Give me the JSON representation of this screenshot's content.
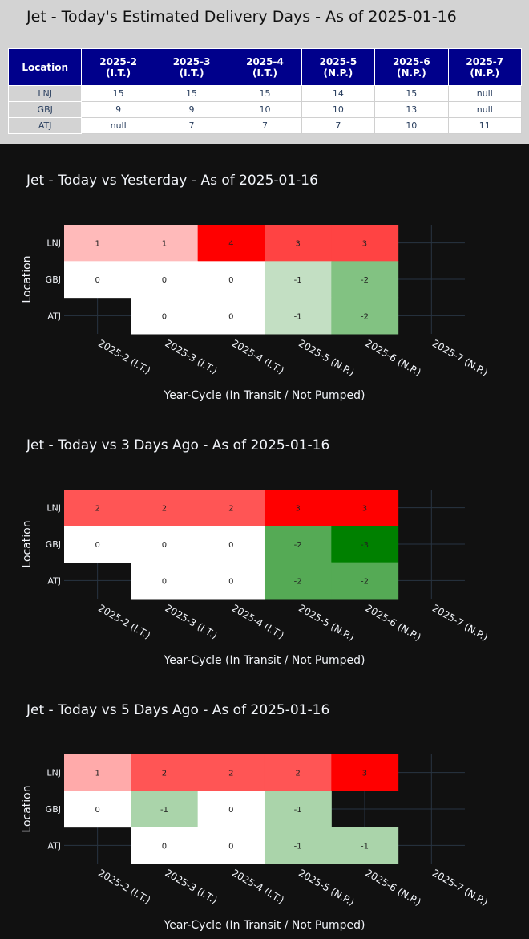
{
  "page_title": "Jet - Today's Estimated Delivery Days - As of 2025-01-16",
  "table": {
    "header_first": "Location",
    "columns": [
      {
        "l1": "2025-2",
        "l2": "(I.T.)"
      },
      {
        "l1": "2025-3",
        "l2": "(I.T.)"
      },
      {
        "l1": "2025-4",
        "l2": "(I.T.)"
      },
      {
        "l1": "2025-5",
        "l2": "(N.P.)"
      },
      {
        "l1": "2025-6",
        "l2": "(N.P.)"
      },
      {
        "l1": "2025-7",
        "l2": "(N.P.)"
      }
    ],
    "rows": [
      {
        "loc": "LNJ",
        "vals": [
          "15",
          "15",
          "15",
          "14",
          "15",
          "null"
        ]
      },
      {
        "loc": "GBJ",
        "vals": [
          "9",
          "9",
          "10",
          "10",
          "13",
          "null"
        ]
      },
      {
        "loc": "ATJ",
        "vals": [
          "null",
          "7",
          "7",
          "7",
          "10",
          "11"
        ]
      }
    ],
    "colors": {
      "header_bg": "#00008b",
      "header_text": "#ffffff",
      "cell_text": "#2a3f5f",
      "loc_bg": "#d3d3d3"
    }
  },
  "chart_data": [
    {
      "type": "heatmap",
      "title": "Jet - Today vs Yesterday - As of 2025-01-16",
      "xlabel": "Year-Cycle (In Transit / Not Pumped)",
      "ylabel": "Location",
      "x": [
        "2025-2 (I.T.)",
        "2025-3 (I.T.)",
        "2025-4 (I.T.)",
        "2025-5 (N.P.)",
        "2025-6 (N.P.)",
        "2025-7 (N.P.)"
      ],
      "y": [
        "LNJ",
        "GBJ",
        "ATJ"
      ],
      "z": [
        [
          1,
          1,
          4,
          3,
          3,
          null
        ],
        [
          0,
          0,
          0,
          -1,
          -2,
          null
        ],
        [
          null,
          0,
          0,
          -1,
          -2,
          null
        ]
      ],
      "colors": [
        [
          "#ffbaba",
          "#ffbaba",
          "#ff0000",
          "#ff4343",
          "#ff4343",
          null
        ],
        [
          "#ffffff",
          "#ffffff",
          "#ffffff",
          "#c3dfc3",
          "#82c282",
          null
        ],
        [
          null,
          "#ffffff",
          "#ffffff",
          "#c3dfc3",
          "#82c282",
          null
        ]
      ]
    },
    {
      "type": "heatmap",
      "title": "Jet - Today vs 3 Days Ago - As of 2025-01-16",
      "xlabel": "Year-Cycle (In Transit / Not Pumped)",
      "ylabel": "Location",
      "x": [
        "2025-2 (I.T.)",
        "2025-3 (I.T.)",
        "2025-4 (I.T.)",
        "2025-5 (N.P.)",
        "2025-6 (N.P.)",
        "2025-7 (N.P.)"
      ],
      "y": [
        "LNJ",
        "GBJ",
        "ATJ"
      ],
      "z": [
        [
          2,
          2,
          2,
          3,
          3,
          null
        ],
        [
          0,
          0,
          0,
          -2,
          -3,
          null
        ],
        [
          null,
          0,
          0,
          -2,
          -2,
          null
        ]
      ],
      "colors": [
        [
          "#ff5555",
          "#ff5555",
          "#ff5555",
          "#ff0000",
          "#ff0000",
          null
        ],
        [
          "#ffffff",
          "#ffffff",
          "#ffffff",
          "#55aa55",
          "#008000",
          null
        ],
        [
          null,
          "#ffffff",
          "#ffffff",
          "#55aa55",
          "#55aa55",
          null
        ]
      ]
    },
    {
      "type": "heatmap",
      "title": "Jet - Today vs 5 Days Ago - As of 2025-01-16",
      "xlabel": "Year-Cycle (In Transit / Not Pumped)",
      "ylabel": "Location",
      "x": [
        "2025-2 (I.T.)",
        "2025-3 (I.T.)",
        "2025-4 (I.T.)",
        "2025-5 (N.P.)",
        "2025-6 (N.P.)",
        "2025-7 (N.P.)"
      ],
      "y": [
        "LNJ",
        "GBJ",
        "ATJ"
      ],
      "z": [
        [
          1,
          2,
          2,
          2,
          3,
          null
        ],
        [
          0,
          -1,
          0,
          -1,
          null,
          null
        ],
        [
          null,
          0,
          0,
          -1,
          -1,
          null
        ]
      ],
      "colors": [
        [
          "#ffaaaa",
          "#ff5555",
          "#ff5555",
          "#ff5555",
          "#ff0000",
          null
        ],
        [
          "#ffffff",
          "#aad4aa",
          "#ffffff",
          "#aad4aa",
          null,
          null
        ],
        [
          null,
          "#ffffff",
          "#ffffff",
          "#aad4aa",
          "#aad4aa",
          null
        ]
      ]
    }
  ]
}
